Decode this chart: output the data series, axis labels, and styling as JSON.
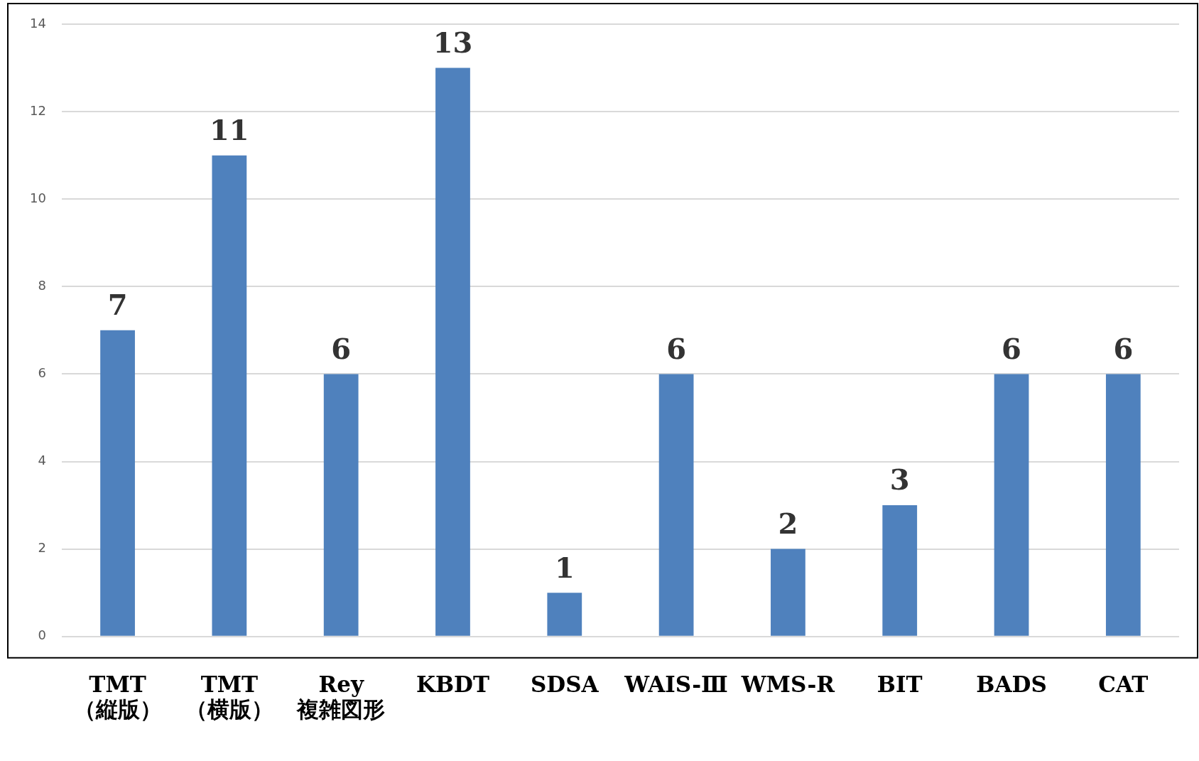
{
  "chart_data": {
    "type": "bar",
    "categories": [
      "TMT\n（縦版）",
      "TMT\n（横版）",
      "Rey\n複雑図形",
      "KBDT",
      "SDSA",
      "WAIS-Ⅲ",
      "WMS-R",
      "BIT",
      "BADS",
      "CAT"
    ],
    "values": [
      7,
      11,
      6,
      13,
      1,
      6,
      2,
      3,
      6,
      6
    ],
    "color": "#4f81bd",
    "ylim": [
      0,
      14
    ],
    "yticks": [
      0,
      2,
      4,
      6,
      8,
      10,
      12,
      14
    ],
    "grid": "y",
    "data_labels": true,
    "legend": false
  }
}
